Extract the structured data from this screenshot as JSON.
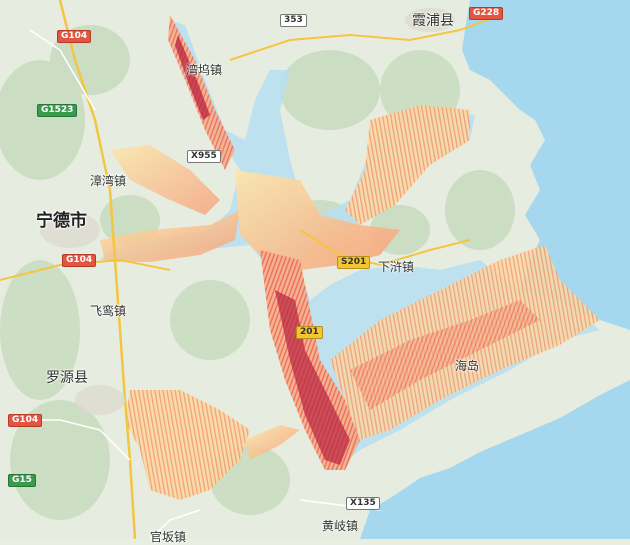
{
  "map": {
    "place_labels": {
      "ningde": "宁德市",
      "xiapu": "霞浦县",
      "wanwu": "湾坞镇",
      "zhangwan": "漳湾镇",
      "xiahu": "下浒镇",
      "feiluan": "飞鸾镇",
      "luoyuan": "罗源县",
      "haidao": "海岛",
      "huangqi": "黄岐镇",
      "guanban": "官坂镇"
    },
    "road_shields": {
      "r353": "353",
      "g0228": "G228",
      "g104_top": "G104",
      "g1523": "G1523",
      "x955": "X955",
      "s201_a": "S201",
      "g104_mid": "G104",
      "s201_b": "201",
      "g104_bottom": "G104",
      "g15": "G15",
      "x135": "X135"
    },
    "colors": {
      "sea": "#a5d8ee",
      "land": "#e6ede0",
      "hills": "#c9dcbf",
      "heat_high": "#b8223e",
      "heat_mid": "#ef7a56",
      "heat_low": "#fff2b0"
    }
  }
}
